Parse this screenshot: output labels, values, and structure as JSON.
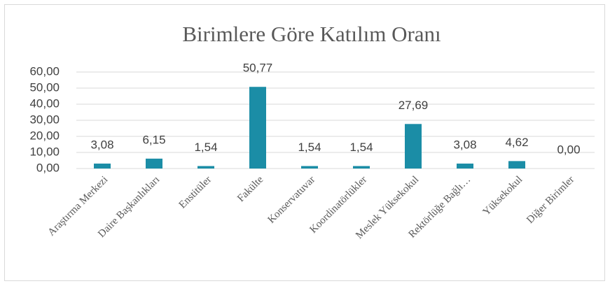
{
  "chart_data": {
    "type": "bar",
    "title": "Birimlere Göre Katılım Oranı",
    "categories": [
      "Araştırma Merkezi",
      "Daire Başkanlıkları",
      "Enstitüler",
      "Fakülte",
      "Konservatuvar",
      "Koordinatörlükler",
      "Meslek Yüksekokul",
      "Rektörlüğe Bağlı…",
      "Yüksekokul",
      "Diğer Birimler"
    ],
    "values": [
      3.08,
      6.15,
      1.54,
      50.77,
      1.54,
      1.54,
      27.69,
      3.08,
      4.62,
      0
    ],
    "value_labels": [
      "3,08",
      "6,15",
      "1,54",
      "50,77",
      "1,54",
      "1,54",
      "27,69",
      "3,08",
      "4,62",
      "0,00"
    ],
    "color": "#1b8da6",
    "ylim": [
      0,
      60
    ],
    "yticks": [
      {
        "value": 0,
        "label": "0,00"
      },
      {
        "value": 10,
        "label": "10,00"
      },
      {
        "value": 20,
        "label": "20,00"
      },
      {
        "value": 30,
        "label": "30,00"
      },
      {
        "value": 40,
        "label": "40,00"
      },
      {
        "value": 50,
        "label": "50,00"
      },
      {
        "value": 60,
        "label": "60,00"
      }
    ],
    "grid": true
  }
}
